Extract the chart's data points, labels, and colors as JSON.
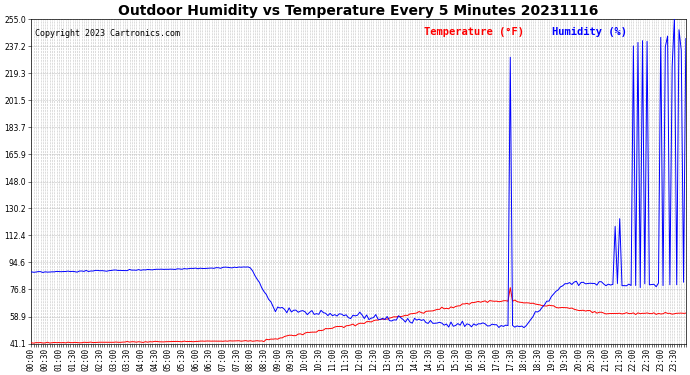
{
  "title": "Outdoor Humidity vs Temperature Every 5 Minutes 20231116",
  "copyright": "Copyright 2023 Cartronics.com",
  "legend_temp": "Temperature (°F)",
  "legend_humid": "Humidity (%)",
  "temp_color": "#ff0000",
  "humid_color": "#0000ff",
  "background_color": "#ffffff",
  "grid_color": "#bbbbbb",
  "ylim": [
    41.1,
    255.0
  ],
  "yticks": [
    41.1,
    58.9,
    76.8,
    94.6,
    112.4,
    130.2,
    148.0,
    165.9,
    183.7,
    201.5,
    219.3,
    237.2,
    255.0
  ],
  "title_fontsize": 10,
  "tick_fontsize": 5.5,
  "copyright_fontsize": 6,
  "legend_fontsize": 7.5
}
